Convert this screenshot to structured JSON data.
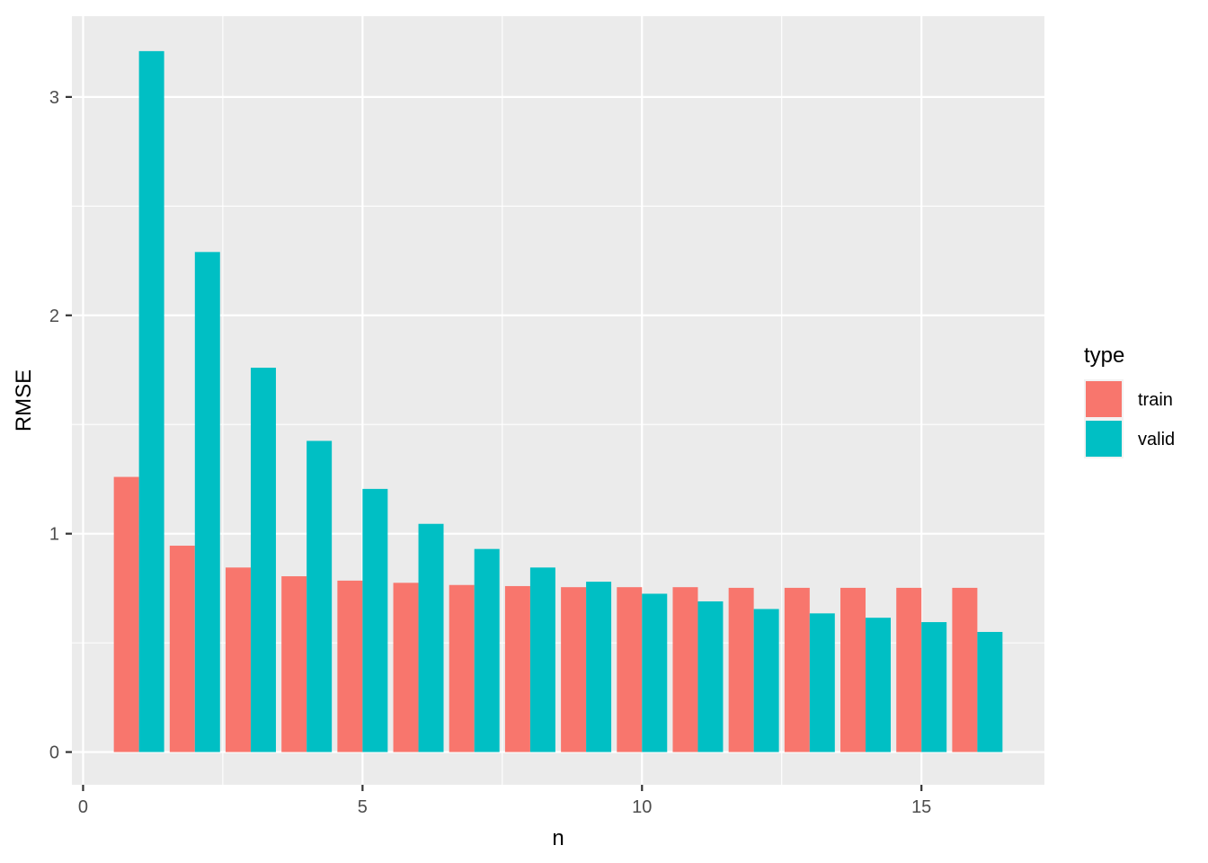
{
  "chart_data": {
    "type": "bar",
    "title": "",
    "xlabel": "n",
    "ylabel": "RMSE",
    "x": [
      1,
      2,
      3,
      4,
      5,
      6,
      7,
      8,
      9,
      10,
      11,
      12,
      13,
      14,
      15,
      16
    ],
    "series": [
      {
        "name": "train",
        "color": "#F8766D",
        "values": [
          1.26,
          0.945,
          0.845,
          0.805,
          0.785,
          0.775,
          0.765,
          0.76,
          0.755,
          0.755,
          0.755,
          0.752,
          0.752,
          0.752,
          0.752,
          0.752
        ]
      },
      {
        "name": "valid",
        "color": "#00BFC4",
        "values": [
          3.21,
          2.29,
          1.76,
          1.425,
          1.205,
          1.045,
          0.93,
          0.845,
          0.78,
          0.725,
          0.69,
          0.655,
          0.635,
          0.615,
          0.595,
          0.55
        ]
      }
    ],
    "xlim": [
      -0.2,
      17.2
    ],
    "ylim": [
      -0.15,
      3.37
    ],
    "xticks": [
      0,
      5,
      10,
      15
    ],
    "xtick_labels": [
      "0",
      "5",
      "10",
      "15"
    ],
    "yticks": [
      0,
      1,
      2,
      3
    ],
    "ytick_labels": [
      "0",
      "1",
      "2",
      "3"
    ],
    "grid": true,
    "legend": {
      "title": "type",
      "position": "right"
    },
    "colors": {
      "panel_bg": "#EBEBEB",
      "grid": "#FFFFFF",
      "train": "#F8766D",
      "valid": "#00BFC4"
    }
  }
}
